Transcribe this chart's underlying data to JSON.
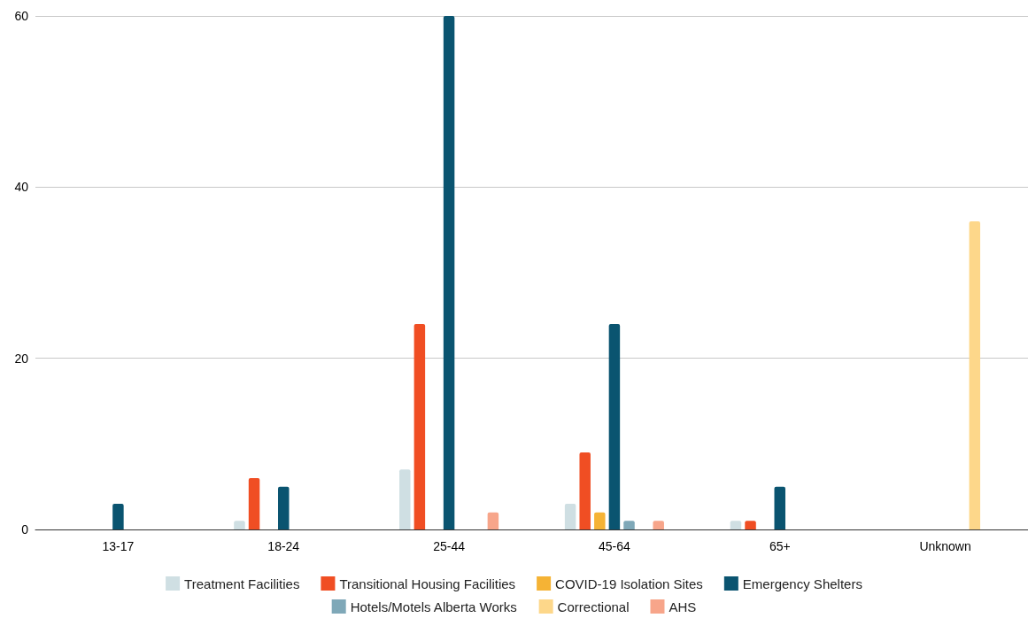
{
  "chart_data": {
    "type": "bar",
    "categories": [
      "13-17",
      "18-24",
      "25-44",
      "45-64",
      "65+",
      "Unknown"
    ],
    "series": [
      {
        "name": "Treatment Facilities",
        "color": "#cfdfe3",
        "values": [
          null,
          1,
          7,
          3,
          1,
          null
        ]
      },
      {
        "name": "Transitional Housing Facilities",
        "color": "#f04e23",
        "values": [
          null,
          6,
          24,
          9,
          1,
          null
        ]
      },
      {
        "name": "COVID-19 Isolation Sites",
        "color": "#f5b335",
        "values": [
          null,
          null,
          null,
          2,
          null,
          null
        ]
      },
      {
        "name": "Emergency Shelters",
        "color": "#0a5470",
        "values": [
          3,
          5,
          60,
          24,
          5,
          null
        ]
      },
      {
        "name": "Hotels/Motels Alberta Works",
        "color": "#7fa8b8",
        "values": [
          null,
          null,
          null,
          1,
          null,
          null
        ]
      },
      {
        "name": "Correctional",
        "color": "#fdd78a",
        "values": [
          null,
          null,
          null,
          null,
          null,
          36
        ]
      },
      {
        "name": "AHS",
        "color": "#f7a58a",
        "values": [
          null,
          null,
          2,
          1,
          null,
          null
        ]
      }
    ],
    "ylim": [
      0,
      60
    ],
    "yticks": [
      0,
      20,
      40,
      60
    ],
    "grid": "y",
    "legend": "bottom"
  }
}
